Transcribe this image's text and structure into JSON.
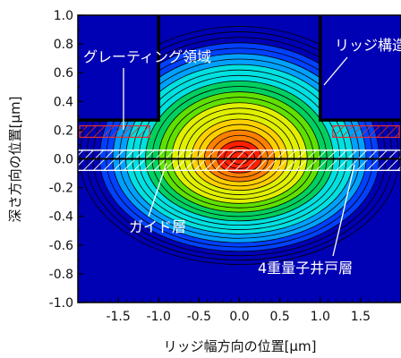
{
  "chart_data": {
    "type": "heatmap",
    "title": "",
    "xlabel": "リッジ幅方向の位置[μm]",
    "ylabel": "深さ方向の位置[μm]",
    "xlim": [
      -2.0,
      2.0
    ],
    "ylim": [
      -1.0,
      1.0
    ],
    "x_ticks": [
      "-1.5",
      "-1.0",
      "-0.5",
      "0.0",
      "0.5",
      "1.0",
      "1.5"
    ],
    "x_tick_values": [
      -1.5,
      -1.0,
      -0.5,
      0.0,
      0.5,
      1.0,
      1.5
    ],
    "y_ticks": [
      "1.0",
      "0.8",
      "0.6",
      "0.4",
      "0.2",
      "0.0",
      "-0.2",
      "-0.4",
      "-0.6",
      "-0.8",
      "-1.0"
    ],
    "y_tick_values": [
      1.0,
      0.8,
      0.6,
      0.4,
      0.2,
      0.0,
      -0.2,
      -0.4,
      -0.6,
      -0.8,
      -1.0
    ],
    "grid": false,
    "colormap": [
      "#0000b4",
      "#0040ff",
      "#00a0ff",
      "#00e0e0",
      "#00d060",
      "#60e000",
      "#e0f000",
      "#ffd000",
      "#ff8000",
      "#ff2000"
    ],
    "field_peak": {
      "x": 0.0,
      "y": 0.0
    },
    "ridge": {
      "x_left": -1.0,
      "x_right": 1.0,
      "y_top": 1.0,
      "y_base": 0.27
    },
    "grating_region": {
      "y_top": 0.23,
      "y_bottom": 0.15,
      "x_extent": [
        -2.0,
        2.0
      ]
    },
    "guide_layer": {
      "y_top": 0.06,
      "y_bottom": -0.08,
      "x_extent": [
        -2.0,
        2.0
      ]
    },
    "quantum_well_layer": {
      "y_top": 0.02,
      "y_bottom": -0.02,
      "x_extent": [
        -2.0,
        2.0
      ]
    },
    "annotations": [
      {
        "key": "grating",
        "text": "グレーティング領域"
      },
      {
        "key": "ridge",
        "text": "リッジ構造"
      },
      {
        "key": "guide",
        "text": "ガイド層"
      },
      {
        "key": "qw",
        "text": "4重量子井戸層"
      }
    ]
  }
}
